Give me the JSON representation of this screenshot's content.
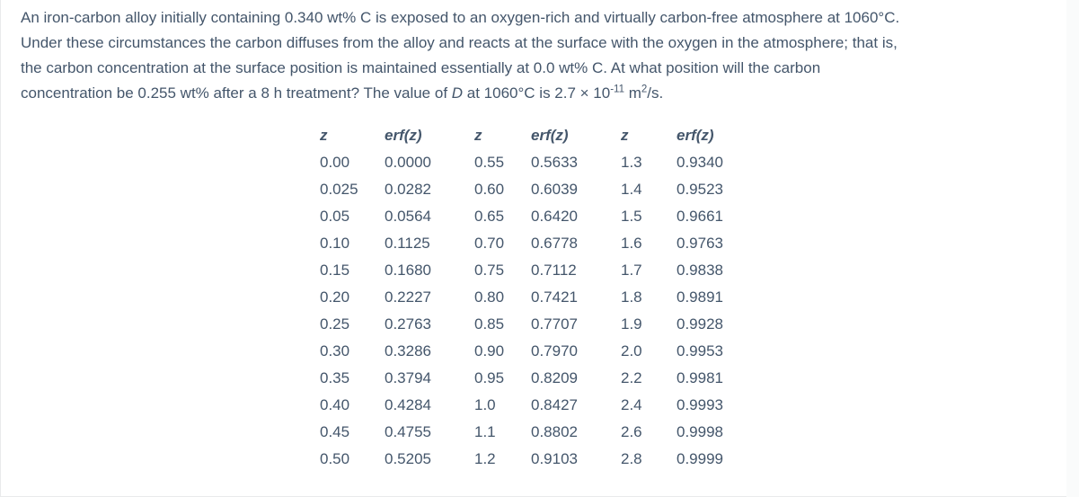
{
  "colors": {
    "text": "#44566b",
    "card_background": "#ffffff",
    "page_background": "#fafbfb",
    "edge_border": "#e9eaeb"
  },
  "problem": {
    "lines": [
      "An iron-carbon alloy initially containing 0.340 wt% C is exposed to an oxygen-rich and virtually carbon-free atmosphere at 1060°C.",
      "Under these circumstances the carbon diffuses from the alloy and reacts at the surface with the oxygen in the atmosphere; that is,",
      "the carbon concentration at the surface position is maintained essentially at 0.0 wt% C. At what position will the carbon"
    ],
    "line4": {
      "part1": "concentration be 0.255 wt% after a 8 h treatment? The value of ",
      "d_symbol": "D",
      "part2": " at 1060°C is 2.7 × 10",
      "exponent": "-11",
      "part3": " m",
      "square": "2",
      "part4": "/s."
    }
  },
  "erf_table": {
    "headers": [
      "z",
      "erf(z)",
      "z",
      "erf(z)",
      "z",
      "erf(z)"
    ],
    "rows": [
      [
        "0.00",
        "0.0000",
        "0.55",
        "0.5633",
        "1.3",
        "0.9340"
      ],
      [
        "0.025",
        "0.0282",
        "0.60",
        "0.6039",
        "1.4",
        "0.9523"
      ],
      [
        "0.05",
        "0.0564",
        "0.65",
        "0.6420",
        "1.5",
        "0.9661"
      ],
      [
        "0.10",
        "0.1125",
        "0.70",
        "0.6778",
        "1.6",
        "0.9763"
      ],
      [
        "0.15",
        "0.1680",
        "0.75",
        "0.7112",
        "1.7",
        "0.9838"
      ],
      [
        "0.20",
        "0.2227",
        "0.80",
        "0.7421",
        "1.8",
        "0.9891"
      ],
      [
        "0.25",
        "0.2763",
        "0.85",
        "0.7707",
        "1.9",
        "0.9928"
      ],
      [
        "0.30",
        "0.3286",
        "0.90",
        "0.7970",
        "2.0",
        "0.9953"
      ],
      [
        "0.35",
        "0.3794",
        "0.95",
        "0.8209",
        "2.2",
        "0.9981"
      ],
      [
        "0.40",
        "0.4284",
        "1.0",
        "0.8427",
        "2.4",
        "0.9993"
      ],
      [
        "0.45",
        "0.4755",
        "1.1",
        "0.8802",
        "2.6",
        "0.9998"
      ],
      [
        "0.50",
        "0.5205",
        "1.2",
        "0.9103",
        "2.8",
        "0.9999"
      ]
    ]
  }
}
